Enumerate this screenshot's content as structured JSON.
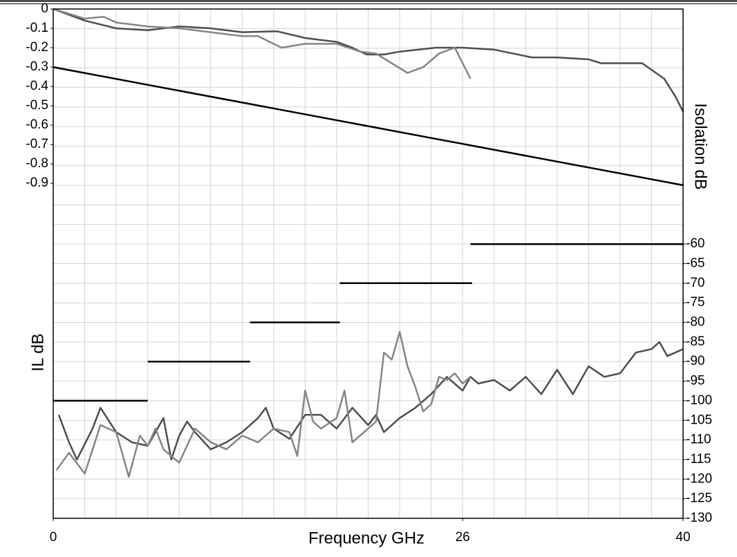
{
  "chart_data": {
    "type": "line",
    "x_label": "Frequency GHz",
    "y_label": "IL dB",
    "y2_label": "Isolation dB",
    "xlim": [
      0,
      40
    ],
    "xticks": [
      0,
      26,
      40
    ],
    "ylim": [
      -2.63,
      0
    ],
    "yticks": [
      0,
      -0.1,
      -0.2,
      -0.3,
      -0.4,
      -0.5,
      -0.6,
      -0.7,
      -0.8,
      -0.9
    ],
    "y2lim": [
      -130,
      0
    ],
    "y2ticks": [
      -60,
      -65,
      -70,
      -75,
      -80,
      -85,
      -90,
      -95,
      -100,
      -105,
      -110,
      -115,
      -120,
      -125,
      -130
    ],
    "grid": true,
    "series": [
      {
        "color": "#4d4d4d",
        "axis": "y",
        "x": [
          0,
          2,
          4,
          6,
          8,
          10,
          12,
          14.2,
          16,
          18,
          19,
          19.9,
          21,
          22,
          24.3,
          26,
          28,
          30.4,
          32,
          34,
          34.8,
          36,
          37.4,
          38.8,
          39.5,
          40
        ],
        "values": [
          0,
          -0.06,
          -0.1,
          -0.11,
          -0.09,
          -0.1,
          -0.12,
          -0.115,
          -0.15,
          -0.17,
          -0.2,
          -0.235,
          -0.235,
          -0.22,
          -0.2,
          -0.2,
          -0.21,
          -0.25,
          -0.25,
          -0.26,
          -0.28,
          -0.28,
          -0.28,
          -0.36,
          -0.45,
          -0.53
        ]
      },
      {
        "color": "#858585",
        "axis": "y",
        "x": [
          0,
          2,
          3.2,
          4,
          6,
          8,
          10,
          12,
          13,
          14.5,
          16,
          18,
          19.5,
          20.5,
          22.5,
          23.5,
          24.5,
          25.5,
          26.5
        ],
        "values": [
          0,
          -0.05,
          -0.04,
          -0.07,
          -0.09,
          -0.1,
          -0.12,
          -0.14,
          -0.14,
          -0.2,
          -0.18,
          -0.18,
          -0.22,
          -0.23,
          -0.33,
          -0.3,
          -0.23,
          -0.2,
          -0.36
        ]
      },
      {
        "color": "#000000",
        "axis": "y",
        "x": [
          0,
          40
        ],
        "values": [
          -0.3,
          -0.91
        ]
      },
      {
        "color": "#000000",
        "axis": "y2",
        "x": [
          0,
          6,
          6,
          6,
          12.5,
          12.5,
          12.5,
          18.2,
          18.2,
          18.2,
          26.6,
          26.6,
          26.5,
          40
        ],
        "values": [
          -100,
          -100,
          null,
          -90,
          -90,
          null,
          -80,
          -80,
          null,
          -70,
          -70,
          null,
          -60,
          -60
        ]
      },
      {
        "color": "#4d4d4d",
        "axis": "y2",
        "x": [
          0.35,
          1,
          1.5,
          2.5,
          3,
          4,
          5,
          6,
          7,
          7.5,
          8,
          8.5,
          9,
          10,
          11,
          12,
          13,
          13.5,
          14,
          15,
          16,
          17,
          18,
          19,
          20,
          20.5,
          21,
          22,
          23,
          24,
          25,
          26,
          26.5,
          27,
          28,
          29,
          30,
          31,
          32,
          33,
          34,
          35,
          36,
          37,
          38,
          38.5,
          39,
          40
        ],
        "values": [
          -103.6,
          -110.6,
          -115,
          -107.1,
          -101.8,
          -108,
          -110.6,
          -111.5,
          -104.4,
          -115,
          -108.9,
          -105.3,
          -108,
          -112.4,
          -110.6,
          -108,
          -104.4,
          -101.8,
          -107.1,
          -109.7,
          -103.6,
          -103.6,
          -107.1,
          -101.8,
          -106.2,
          -103.6,
          -108,
          -104.4,
          -101.8,
          -98.3,
          -93.9,
          -97.4,
          -93.9,
          -95.6,
          -94.7,
          -97.4,
          -93.9,
          -98.3,
          -92.1,
          -98.3,
          -91.2,
          -93.9,
          -93,
          -87.7,
          -86.8,
          -85,
          -88.6,
          -86.8
        ]
      },
      {
        "color": "#858585",
        "axis": "y2",
        "x": [
          0.2,
          1,
          2,
          3,
          4,
          4.8,
          5.5,
          6,
          6.5,
          7,
          8,
          9,
          10,
          11,
          12,
          13,
          14,
          15,
          15.5,
          16,
          16.5,
          17,
          18,
          18.5,
          19,
          20,
          20.5,
          21,
          21.5,
          22,
          22.5,
          23,
          23.5,
          24,
          24.5,
          25,
          25.5,
          26,
          26.5
        ],
        "values": [
          -117.7,
          -113.3,
          -118.6,
          -106.2,
          -108,
          -119.4,
          -108.9,
          -111.5,
          -107.1,
          -112.4,
          -115.8,
          -107.1,
          -110.6,
          -112.4,
          -108.9,
          -110.6,
          -107.1,
          -108,
          -114.1,
          -97.4,
          -105.3,
          -107.1,
          -104.4,
          -97.4,
          -110.6,
          -107.1,
          -105.3,
          -87.7,
          -89.5,
          -82.4,
          -91.2,
          -96.5,
          -102.7,
          -100.9,
          -93.9,
          -94.7,
          -93,
          -95.6,
          -93.9
        ]
      }
    ]
  }
}
